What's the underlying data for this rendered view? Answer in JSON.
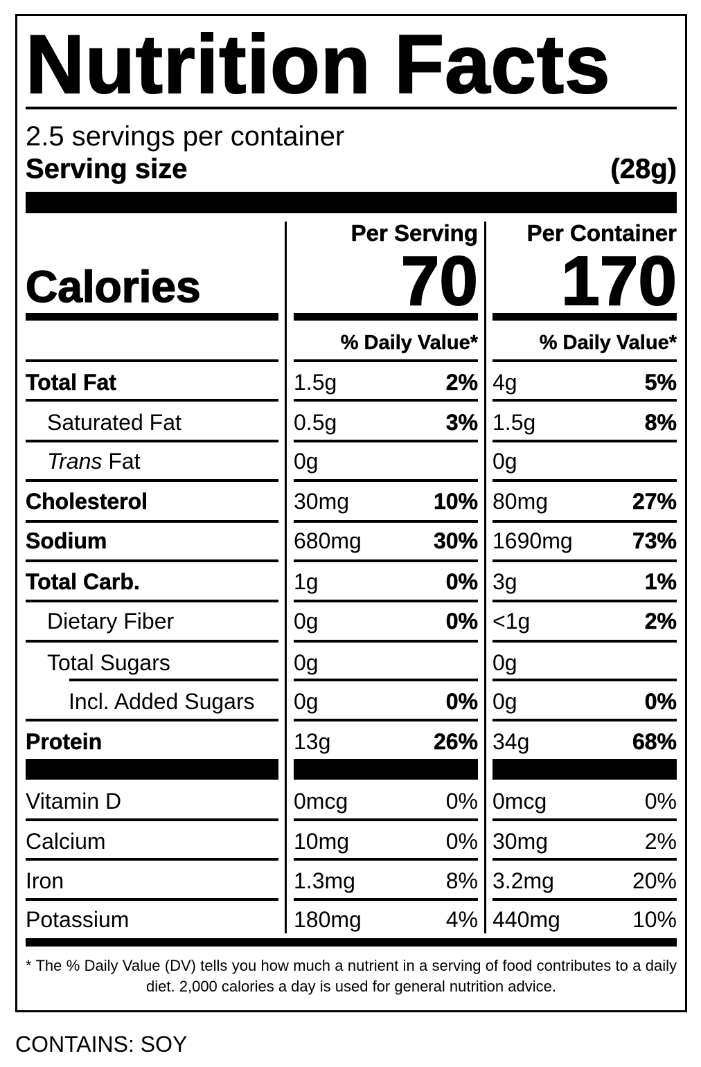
{
  "label": {
    "title": "Nutrition Facts",
    "servings_per_container": "2.5 servings per container",
    "serving_size_label": "Serving size",
    "serving_size_value": "(28g)",
    "calories_label": "Calories",
    "columns": [
      {
        "header": "Per Serving",
        "calories": "70",
        "dv_header": "% Daily Value*"
      },
      {
        "header": "Per Container",
        "calories": "170",
        "dv_header": "% Daily Value*"
      }
    ],
    "nutrients": [
      {
        "name": "Total Fat",
        "style": "bold",
        "indent": 0,
        "serving_amount": "1.5g",
        "serving_dv": "2%",
        "container_amount": "4g",
        "container_dv": "5%"
      },
      {
        "name": "Saturated Fat",
        "style": "normal",
        "indent": 1,
        "serving_amount": "0.5g",
        "serving_dv": "3%",
        "container_amount": "1.5g",
        "container_dv": "8%"
      },
      {
        "name_italic": "Trans",
        "name": " Fat",
        "style": "normal",
        "indent": 1,
        "serving_amount": "0g",
        "serving_dv": "",
        "container_amount": "0g",
        "container_dv": ""
      },
      {
        "name": "Cholesterol",
        "style": "bold",
        "indent": 0,
        "serving_amount": "30mg",
        "serving_dv": "10%",
        "container_amount": "80mg",
        "container_dv": "27%"
      },
      {
        "name": "Sodium",
        "style": "bold",
        "indent": 0,
        "serving_amount": "680mg",
        "serving_dv": "30%",
        "container_amount": "1690mg",
        "container_dv": "73%"
      },
      {
        "name": "Total Carb.",
        "style": "bold",
        "indent": 0,
        "serving_amount": "1g",
        "serving_dv": "0%",
        "container_amount": "3g",
        "container_dv": "1%"
      },
      {
        "name": "Dietary Fiber",
        "style": "normal",
        "indent": 1,
        "serving_amount": "0g",
        "serving_dv": "0%",
        "container_amount": "<1g",
        "container_dv": "2%"
      },
      {
        "name": "Total Sugars",
        "style": "normal",
        "indent": 1,
        "serving_amount": "0g",
        "serving_dv": "",
        "container_amount": "0g",
        "container_dv": ""
      },
      {
        "name": "Incl. Added Sugars",
        "style": "normal",
        "indent": 2,
        "serving_amount": "0g",
        "serving_dv": "0%",
        "container_amount": "0g",
        "container_dv": "0%"
      },
      {
        "name": "Protein",
        "style": "bold",
        "indent": 0,
        "serving_amount": "13g",
        "serving_dv": "26%",
        "container_amount": "34g",
        "container_dv": "68%"
      }
    ],
    "vitamins": [
      {
        "name": "Vitamin D",
        "serving_amount": "0mcg",
        "serving_dv": "0%",
        "container_amount": "0mcg",
        "container_dv": "0%"
      },
      {
        "name": "Calcium",
        "serving_amount": "10mg",
        "serving_dv": "0%",
        "container_amount": "30mg",
        "container_dv": "2%"
      },
      {
        "name": "Iron",
        "serving_amount": "1.3mg",
        "serving_dv": "8%",
        "container_amount": "3.2mg",
        "container_dv": "20%"
      },
      {
        "name": "Potassium",
        "serving_amount": "180mg",
        "serving_dv": "4%",
        "container_amount": "440mg",
        "container_dv": "10%"
      }
    ],
    "footnote": "* The % Daily Value (DV) tells you how much a nutrient in a serving of food contributes to a daily diet. 2,000 calories a day is used for general nutrition advice."
  },
  "allergen": "CONTAINS: SOY"
}
